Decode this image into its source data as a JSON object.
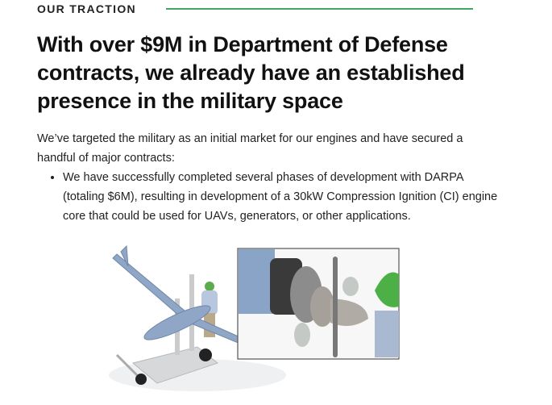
{
  "section": {
    "eyebrow": "OUR TRACTION",
    "accent_color": "#3fa862"
  },
  "headline": "With over $9M in Department of Defense contracts, we already have an established presence in the military space",
  "intro": "We’ve targeted the military as an initial market for our engines and have secured a handful of major contracts:",
  "bullets": [
    "We have successfully completed several phases of development with DARPA (totaling $6M), resulting in development of a 30kW Compression Ignition (CI) engine core that could be used for UAVs, generators, or other applications."
  ],
  "figure": {
    "icon": "uav-and-engine-illustration"
  }
}
